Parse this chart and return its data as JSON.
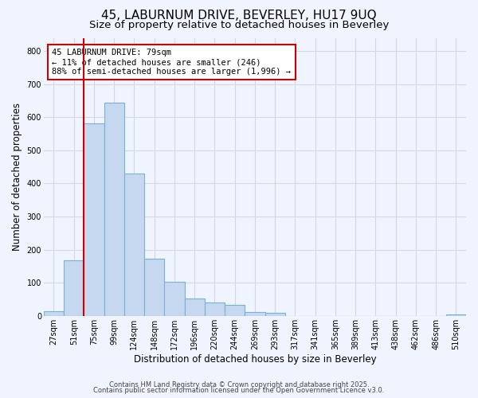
{
  "title1": "45, LABURNUM DRIVE, BEVERLEY, HU17 9UQ",
  "title2": "Size of property relative to detached houses in Beverley",
  "xlabel": "Distribution of detached houses by size in Beverley",
  "ylabel": "Number of detached properties",
  "bar_color": "#c5d8f0",
  "bar_edge_color": "#7bafd4",
  "categories": [
    "27sqm",
    "51sqm",
    "75sqm",
    "99sqm",
    "124sqm",
    "148sqm",
    "172sqm",
    "196sqm",
    "220sqm",
    "244sqm",
    "269sqm",
    "293sqm",
    "317sqm",
    "341sqm",
    "365sqm",
    "389sqm",
    "413sqm",
    "438sqm",
    "462sqm",
    "486sqm",
    "510sqm"
  ],
  "values": [
    15,
    168,
    582,
    645,
    430,
    173,
    103,
    52,
    40,
    32,
    12,
    10,
    0,
    0,
    0,
    0,
    0,
    0,
    0,
    0,
    5
  ],
  "ylim": [
    0,
    840
  ],
  "yticks": [
    0,
    100,
    200,
    300,
    400,
    500,
    600,
    700,
    800
  ],
  "vline_x": 1.5,
  "vline_color": "#cc0000",
  "annotation_text": "45 LABURNUM DRIVE: 79sqm\n← 11% of detached houses are smaller (246)\n88% of semi-detached houses are larger (1,996) →",
  "annotation_box_facecolor": "#ffffff",
  "annotation_box_edgecolor": "#cc0000",
  "fig_facecolor": "#f0f4ff",
  "axes_facecolor": "#f0f4ff",
  "grid_color": "#d0d8e8",
  "footer1": "Contains HM Land Registry data © Crown copyright and database right 2025.",
  "footer2": "Contains public sector information licensed under the Open Government Licence v3.0.",
  "title1_fontsize": 11,
  "title2_fontsize": 9.5,
  "tick_fontsize": 7,
  "ylabel_fontsize": 8.5,
  "xlabel_fontsize": 8.5,
  "footer_fontsize": 6,
  "annot_fontsize": 7.5
}
